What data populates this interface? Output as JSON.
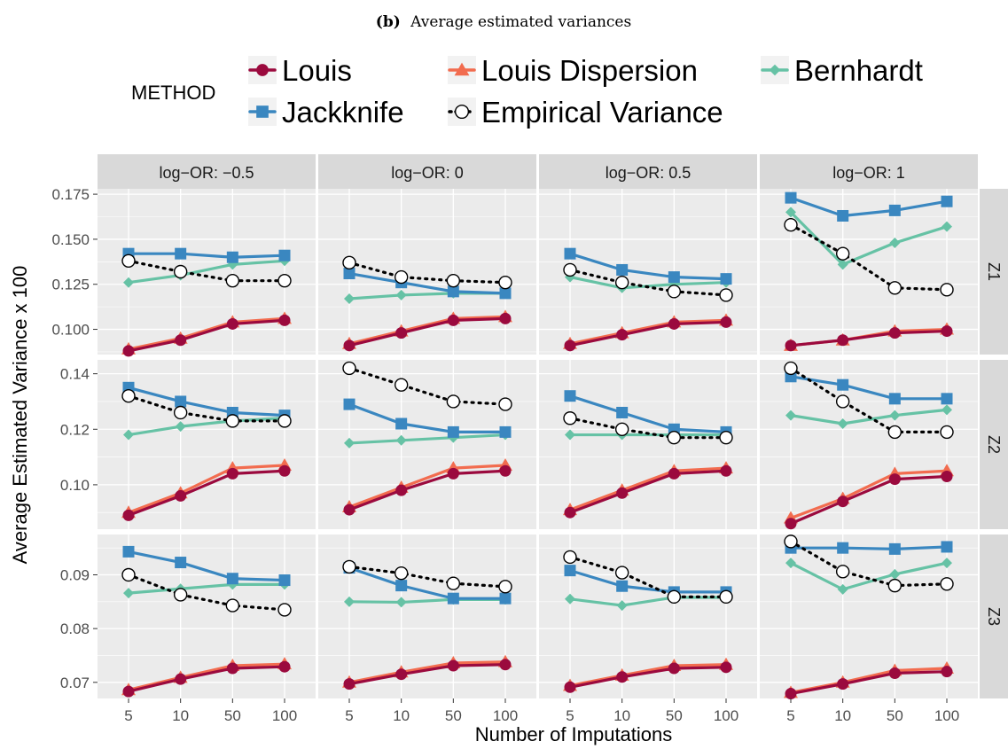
{
  "caption": {
    "label": "(b)",
    "text": "Average estimated variances"
  },
  "legend": {
    "title": "METHOD",
    "items": [
      {
        "name": "Louis",
        "color": "#9b0a3e",
        "shape": "circle",
        "line": "solid"
      },
      {
        "name": "Louis Dispersion",
        "color": "#f26c4f",
        "shape": "triangle",
        "line": "solid"
      },
      {
        "name": "Bernhardt",
        "color": "#66c2a5",
        "shape": "diamond",
        "line": "solid"
      },
      {
        "name": "Jackknife",
        "color": "#3a87c0",
        "shape": "square",
        "line": "solid"
      },
      {
        "name": "Empirical Variance",
        "color": "#000000",
        "shape": "open-circle",
        "line": "dotted"
      }
    ]
  },
  "chart_data": {
    "type": "line",
    "xlabel": "Number of Imputations",
    "ylabel": "Average Estimated Variance x 100",
    "categories": [
      "5",
      "10",
      "50",
      "100"
    ],
    "columns": [
      "log−OR:  −0.5",
      "log−OR:  0",
      "log−OR:  0.5",
      "log−OR:  1"
    ],
    "rows": [
      {
        "label": "Z1",
        "ylim": [
          0.086,
          0.178
        ],
        "yticks": [
          0.1,
          0.125,
          0.15,
          0.175
        ],
        "ytick_labels": [
          "0.100",
          "0.125",
          "0.150",
          "0.175"
        ],
        "panels": [
          {
            "Louis": [
              0.088,
              0.094,
              0.103,
              0.105
            ],
            "Louis Dispersion": [
              0.089,
              0.095,
              0.104,
              0.106
            ],
            "Bernhardt": [
              0.126,
              0.13,
              0.136,
              0.138
            ],
            "Jackknife": [
              0.142,
              0.142,
              0.14,
              0.141
            ],
            "Empirical Variance": [
              0.138,
              0.132,
              0.127,
              0.127
            ]
          },
          {
            "Louis": [
              0.091,
              0.098,
              0.105,
              0.106
            ],
            "Louis Dispersion": [
              0.092,
              0.099,
              0.106,
              0.107
            ],
            "Bernhardt": [
              0.117,
              0.119,
              0.12,
              0.12
            ],
            "Jackknife": [
              0.131,
              0.126,
              0.121,
              0.12
            ],
            "Empirical Variance": [
              0.137,
              0.129,
              0.127,
              0.126
            ]
          },
          {
            "Louis": [
              0.091,
              0.097,
              0.103,
              0.104
            ],
            "Louis Dispersion": [
              0.092,
              0.098,
              0.104,
              0.105
            ],
            "Bernhardt": [
              0.129,
              0.123,
              0.125,
              0.126
            ],
            "Jackknife": [
              0.142,
              0.133,
              0.129,
              0.128
            ],
            "Empirical Variance": [
              0.133,
              0.126,
              0.121,
              0.119
            ]
          },
          {
            "Louis": [
              0.091,
              0.094,
              0.098,
              0.099
            ],
            "Louis Dispersion": [
              0.091,
              0.094,
              0.099,
              0.1
            ],
            "Bernhardt": [
              0.165,
              0.136,
              0.148,
              0.157
            ],
            "Jackknife": [
              0.173,
              0.163,
              0.166,
              0.171
            ],
            "Empirical Variance": [
              0.158,
              0.142,
              0.123,
              0.122
            ]
          }
        ]
      },
      {
        "label": "Z2",
        "ylim": [
          0.084,
          0.145
        ],
        "yticks": [
          0.1,
          0.12,
          0.14
        ],
        "ytick_labels": [
          "0.10",
          "0.12",
          "0.14"
        ],
        "panels": [
          {
            "Louis": [
              0.089,
              0.096,
              0.104,
              0.105
            ],
            "Louis Dispersion": [
              0.09,
              0.097,
              0.106,
              0.107
            ],
            "Bernhardt": [
              0.118,
              0.121,
              0.123,
              0.124
            ],
            "Jackknife": [
              0.135,
              0.13,
              0.126,
              0.125
            ],
            "Empirical Variance": [
              0.132,
              0.126,
              0.123,
              0.123
            ]
          },
          {
            "Louis": [
              0.091,
              0.098,
              0.104,
              0.105
            ],
            "Louis Dispersion": [
              0.092,
              0.099,
              0.106,
              0.107
            ],
            "Bernhardt": [
              0.115,
              0.116,
              0.117,
              0.118
            ],
            "Jackknife": [
              0.129,
              0.122,
              0.119,
              0.119
            ],
            "Empirical Variance": [
              0.142,
              0.136,
              0.13,
              0.129
            ]
          },
          {
            "Louis": [
              0.09,
              0.097,
              0.104,
              0.105
            ],
            "Louis Dispersion": [
              0.091,
              0.098,
              0.105,
              0.106
            ],
            "Bernhardt": [
              0.118,
              0.118,
              0.118,
              0.118
            ],
            "Jackknife": [
              0.132,
              0.126,
              0.12,
              0.119
            ],
            "Empirical Variance": [
              0.124,
              0.12,
              0.117,
              0.117
            ]
          },
          {
            "Louis": [
              0.086,
              0.094,
              0.102,
              0.103
            ],
            "Louis Dispersion": [
              0.088,
              0.095,
              0.104,
              0.105
            ],
            "Bernhardt": [
              0.125,
              0.122,
              0.125,
              0.127
            ],
            "Jackknife": [
              0.139,
              0.136,
              0.131,
              0.131
            ],
            "Empirical Variance": [
              0.142,
              0.13,
              0.119,
              0.119
            ]
          }
        ]
      },
      {
        "label": "Z3",
        "ylim": [
          0.067,
          0.0975
        ],
        "yticks": [
          0.07,
          0.08,
          0.09
        ],
        "ytick_labels": [
          "0.07",
          "0.08",
          "0.09"
        ],
        "panels": [
          {
            "Louis": [
              0.0683,
              0.0706,
              0.0726,
              0.0729
            ],
            "Louis Dispersion": [
              0.0686,
              0.0709,
              0.0731,
              0.0734
            ],
            "Bernhardt": [
              0.0866,
              0.0874,
              0.0882,
              0.0882
            ],
            "Jackknife": [
              0.0943,
              0.0923,
              0.0893,
              0.089
            ],
            "Empirical Variance": [
              0.09,
              0.0863,
              0.0843,
              0.0835
            ]
          },
          {
            "Louis": [
              0.0697,
              0.0715,
              0.0731,
              0.0733
            ],
            "Louis Dispersion": [
              0.07,
              0.0719,
              0.0736,
              0.0738
            ],
            "Bernhardt": [
              0.085,
              0.0849,
              0.0854,
              0.0854
            ],
            "Jackknife": [
              0.0913,
              0.088,
              0.0856,
              0.0856
            ],
            "Empirical Variance": [
              0.0915,
              0.0903,
              0.0884,
              0.0878
            ]
          },
          {
            "Louis": [
              0.0691,
              0.071,
              0.0726,
              0.0728
            ],
            "Louis Dispersion": [
              0.0694,
              0.0713,
              0.0731,
              0.0733
            ],
            "Bernhardt": [
              0.0855,
              0.0843,
              0.0858,
              0.0858
            ],
            "Jackknife": [
              0.0908,
              0.0879,
              0.0868,
              0.0868
            ],
            "Empirical Variance": [
              0.0933,
              0.0904,
              0.0859,
              0.0859
            ]
          },
          {
            "Louis": [
              0.0679,
              0.0697,
              0.0717,
              0.072
            ],
            "Louis Dispersion": [
              0.0681,
              0.07,
              0.0722,
              0.0726
            ],
            "Bernhardt": [
              0.0922,
              0.0873,
              0.0901,
              0.0922
            ],
            "Jackknife": [
              0.095,
              0.095,
              0.0948,
              0.0952
            ],
            "Empirical Variance": [
              0.0962,
              0.0906,
              0.088,
              0.0883
            ]
          }
        ]
      }
    ]
  }
}
